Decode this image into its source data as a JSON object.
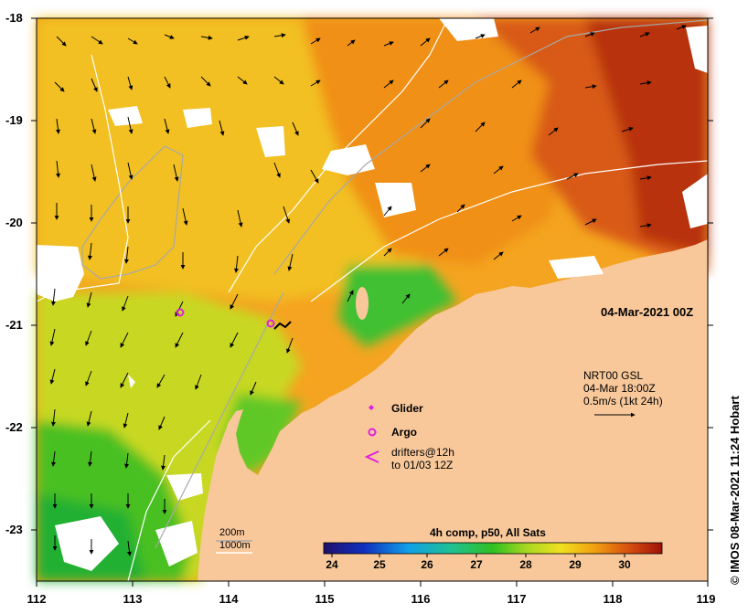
{
  "axes": {
    "lat_ticks": [
      "-18",
      "-19",
      "-20",
      "-21",
      "-22",
      "-23"
    ],
    "lon_ticks": [
      "112",
      "113",
      "114",
      "115",
      "116",
      "117",
      "118",
      "119"
    ]
  },
  "date_label": "04-Mar-2021 00Z",
  "credit": "© IMOS 08-Mar-2021 11:24 Hobart",
  "currents": {
    "line1": "NRT00 GSL",
    "line2": "04-Mar 18:00Z",
    "line3": "0.5m/s (1kt 24h)"
  },
  "legend": {
    "glider": "Glider",
    "argo": "Argo",
    "drifters_line1": "drifters@12h",
    "drifters_line2": "to 01/03 12Z"
  },
  "isobaths": {
    "shallow": "200m",
    "deep": "1000m"
  },
  "colorbar": {
    "title": "4h comp, p50, All Sats",
    "ticks": [
      "24",
      "25",
      "26",
      "27",
      "28",
      "29",
      "30"
    ],
    "min": 23.6,
    "max": 30.7
  },
  "colors": {
    "land": "#f8c89a",
    "cloud": "#ffffff",
    "argo": "#e020e0",
    "isobath_shallow": "#a8a8a8",
    "isobath_deep": "#ffffff"
  }
}
